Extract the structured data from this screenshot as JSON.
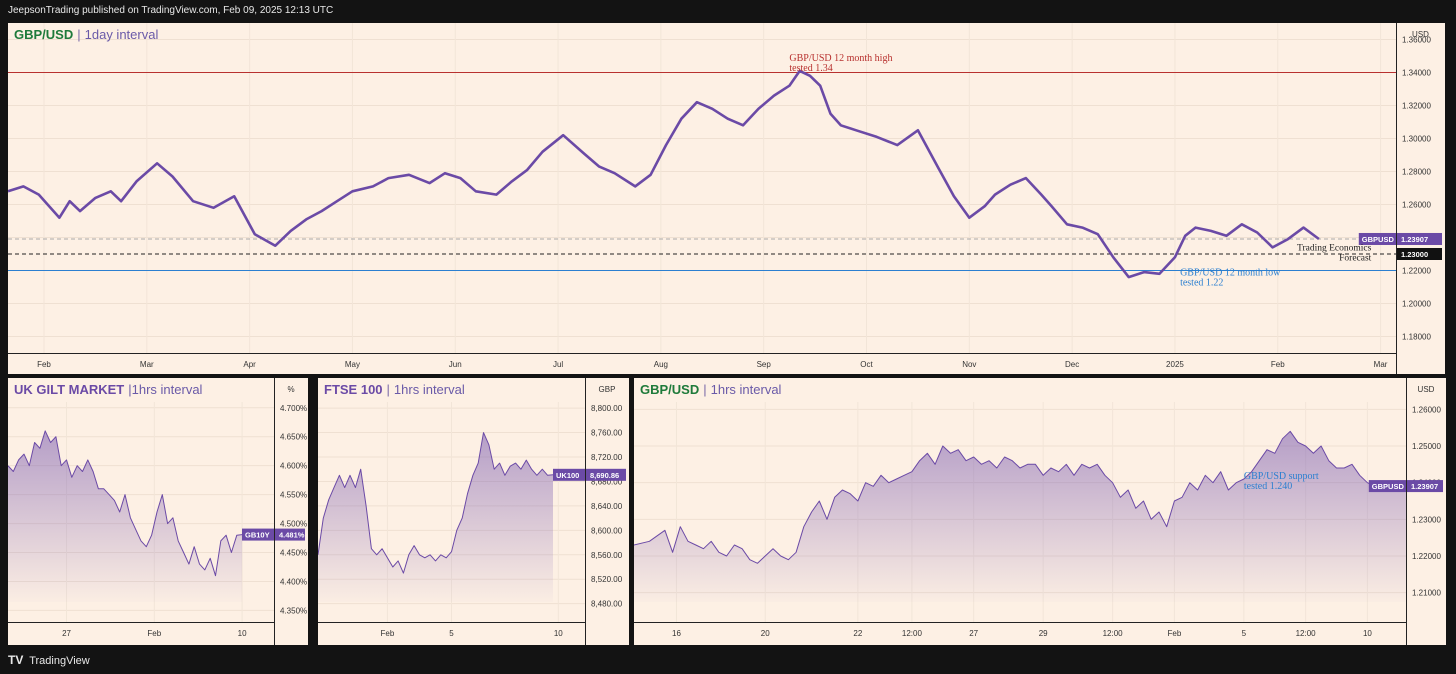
{
  "header": {
    "published_text": "JeepsonTrading published on TradingView.com, Feb 09, 2025 12:13 UTC"
  },
  "footer": {
    "brand": "TradingView",
    "logo_glyph": "TV"
  },
  "colors": {
    "line": "#6b4aa6",
    "fill": "#7a5bb0",
    "panel_bg": "#fdf0e4",
    "tag": "#6b4aa6",
    "red": "#b8312f",
    "blue": "#2b7fd0"
  },
  "chart_data": [
    {
      "type": "line",
      "id": "main",
      "title_symbol": "GBP/USD",
      "title_symbol_color": "#1e7a3a",
      "title_interval": "1day interval",
      "unit_label": "USD",
      "ylim": [
        1.17,
        1.37
      ],
      "y_ticks": [
        1.18,
        1.2,
        1.22,
        1.24,
        1.26,
        1.28,
        1.3,
        1.32,
        1.34,
        1.36
      ],
      "y_tick_labels": [
        "1.18000",
        "1.20000",
        "1.22000",
        "1.24000",
        "1.26000",
        "1.28000",
        "1.30000",
        "1.32000",
        "1.34000",
        "1.36000"
      ],
      "xlim": [
        0,
        13.5
      ],
      "x_ticks": [
        0.35,
        1.35,
        2.35,
        3.35,
        4.35,
        5.35,
        6.35,
        7.35,
        8.35,
        9.35,
        10.35,
        11.35,
        12.35,
        13.35
      ],
      "x_tick_labels": [
        "Feb",
        "Mar",
        "Apr",
        "May",
        "Jun",
        "Jul",
        "Aug",
        "Sep",
        "Oct",
        "Nov",
        "Dec",
        "2025",
        "Feb",
        "Mar"
      ],
      "x": [
        0,
        0.15,
        0.3,
        0.5,
        0.6,
        0.7,
        0.85,
        1.0,
        1.1,
        1.25,
        1.45,
        1.6,
        1.8,
        2.0,
        2.2,
        2.4,
        2.6,
        2.75,
        2.9,
        3.05,
        3.2,
        3.35,
        3.55,
        3.7,
        3.9,
        4.1,
        4.25,
        4.4,
        4.55,
        4.75,
        4.9,
        5.05,
        5.2,
        5.4,
        5.6,
        5.75,
        5.9,
        6.1,
        6.25,
        6.4,
        6.55,
        6.7,
        6.85,
        7.0,
        7.15,
        7.3,
        7.45,
        7.6,
        7.7,
        7.8,
        7.9,
        8.0,
        8.1,
        8.25,
        8.45,
        8.65,
        8.85,
        9.05,
        9.2,
        9.35,
        9.5,
        9.6,
        9.75,
        9.9,
        10.05,
        10.15,
        10.3,
        10.45,
        10.6,
        10.75,
        10.9,
        11.05,
        11.2,
        11.35,
        11.45,
        11.55,
        11.7,
        11.85,
        12.0,
        12.15,
        12.3,
        12.45,
        12.6,
        12.75
      ],
      "y": [
        1.268,
        1.271,
        1.266,
        1.252,
        1.262,
        1.256,
        1.264,
        1.268,
        1.262,
        1.274,
        1.285,
        1.277,
        1.262,
        1.258,
        1.265,
        1.242,
        1.235,
        1.244,
        1.251,
        1.256,
        1.262,
        1.268,
        1.271,
        1.276,
        1.278,
        1.273,
        1.279,
        1.276,
        1.268,
        1.266,
        1.274,
        1.281,
        1.292,
        1.302,
        1.291,
        1.283,
        1.279,
        1.271,
        1.278,
        1.296,
        1.312,
        1.322,
        1.318,
        1.312,
        1.308,
        1.318,
        1.326,
        1.332,
        1.341,
        1.338,
        1.332,
        1.315,
        1.308,
        1.305,
        1.301,
        1.296,
        1.305,
        1.282,
        1.265,
        1.252,
        1.259,
        1.266,
        1.272,
        1.276,
        1.266,
        1.259,
        1.248,
        1.246,
        1.242,
        1.228,
        1.216,
        1.219,
        1.218,
        1.228,
        1.241,
        1.246,
        1.244,
        1.241,
        1.248,
        1.243,
        1.234,
        1.239,
        1.246,
        1.2391
      ],
      "hlines": [
        {
          "name": "twelve-month-high-line",
          "value": 1.34,
          "color": "#b8312f",
          "style": "solid"
        },
        {
          "name": "twelve-month-low-line",
          "value": 1.22,
          "color": "#2b7fd0",
          "style": "solid"
        },
        {
          "name": "forecast-line",
          "value": 1.23,
          "color": "#222222",
          "style": "dashed"
        },
        {
          "name": "previous-close-line",
          "value": 1.2391,
          "color": "#aaaaaa",
          "style": "dashed"
        }
      ],
      "price_tags": [
        {
          "value": 1.2391,
          "label": "GBPUSD",
          "price": "1.23907",
          "color": "#6b4aa6"
        },
        {
          "value": 1.23,
          "label": "",
          "price": "1.23000",
          "color": "#111111"
        }
      ],
      "annotations": [
        {
          "name": "twelve-month-high-annotation",
          "lines": [
            "GBP/USD 12 month high",
            "tested 1.34"
          ],
          "x": 7.6,
          "y": 1.347,
          "class": "ann-red"
        },
        {
          "name": "twelve-month-low-annotation",
          "lines": [
            "GBP/USD 12 month low",
            "tested 1.22"
          ],
          "x": 11.4,
          "y": 1.217,
          "class": "ann-blue"
        },
        {
          "name": "forecast-annotation",
          "lines": [
            "Trading Economics",
            "Forecast"
          ],
          "x": 13.26,
          "y": 1.232,
          "class": "ann-black",
          "anchor": "end"
        }
      ]
    },
    {
      "type": "area",
      "id": "gilt",
      "title_symbol": "UK GILT MARKET",
      "title_symbol_color": "#6b4aa6",
      "title_interval": "|1hrs interval",
      "unit_label": "%",
      "ylim": [
        4.33,
        4.71
      ],
      "y_ticks": [
        4.35,
        4.4,
        4.45,
        4.5,
        4.55,
        4.6,
        4.65,
        4.7
      ],
      "y_tick_labels": [
        "4.350%",
        "4.400%",
        "4.450%",
        "4.500%",
        "4.550%",
        "4.600%",
        "4.650%",
        "4.700%"
      ],
      "xlim": [
        0,
        100
      ],
      "x_ticks": [
        22,
        55,
        88
      ],
      "x_tick_labels": [
        "27",
        "Feb",
        "10"
      ],
      "x": [
        0,
        2,
        4,
        6,
        8,
        10,
        12,
        14,
        16,
        18,
        20,
        22,
        24,
        26,
        28,
        30,
        32,
        34,
        36,
        38,
        40,
        42,
        44,
        46,
        48,
        50,
        52,
        54,
        56,
        58,
        60,
        62,
        64,
        66,
        68,
        70,
        72,
        74,
        76,
        78,
        80,
        82,
        84,
        86,
        88
      ],
      "y": [
        4.6,
        4.59,
        4.61,
        4.62,
        4.6,
        4.64,
        4.63,
        4.66,
        4.64,
        4.65,
        4.6,
        4.61,
        4.58,
        4.6,
        4.59,
        4.61,
        4.59,
        4.56,
        4.56,
        4.55,
        4.54,
        4.52,
        4.55,
        4.51,
        4.49,
        4.47,
        4.46,
        4.48,
        4.52,
        4.55,
        4.5,
        4.51,
        4.47,
        4.45,
        4.43,
        4.46,
        4.43,
        4.42,
        4.44,
        4.41,
        4.47,
        4.48,
        4.45,
        4.48,
        4.481
      ],
      "price_tags": [
        {
          "value": 4.481,
          "label": "GB10Y",
          "price": "4.481%",
          "color": "#6b4aa6"
        }
      ]
    },
    {
      "type": "area",
      "id": "ftse",
      "title_symbol": "FTSE 100",
      "title_symbol_color": "#6b4aa6",
      "title_interval": "1hrs interval",
      "unit_label": "GBP",
      "ylim": [
        8450,
        8810
      ],
      "y_ticks": [
        8480,
        8520,
        8560,
        8600,
        8640,
        8680,
        8720,
        8760,
        8800
      ],
      "y_tick_labels": [
        "8,480.00",
        "8,520.00",
        "8,560.00",
        "8,600.00",
        "8,640.00",
        "8,680.00",
        "8,720.00",
        "8,760.00",
        "8,800.00"
      ],
      "xlim": [
        0,
        100
      ],
      "x_ticks": [
        26,
        50,
        90
      ],
      "x_tick_labels": [
        "Feb",
        "5",
        "10"
      ],
      "x": [
        0,
        2,
        4,
        6,
        8,
        10,
        12,
        14,
        16,
        18,
        20,
        22,
        24,
        26,
        28,
        30,
        32,
        34,
        36,
        38,
        40,
        42,
        44,
        46,
        48,
        50,
        52,
        54,
        56,
        58,
        60,
        62,
        64,
        66,
        68,
        70,
        72,
        74,
        76,
        78,
        80,
        82,
        84,
        86,
        88
      ],
      "y": [
        8560,
        8620,
        8650,
        8670,
        8690,
        8670,
        8690,
        8670,
        8700,
        8640,
        8570,
        8560,
        8570,
        8555,
        8540,
        8550,
        8530,
        8560,
        8575,
        8560,
        8555,
        8560,
        8550,
        8560,
        8555,
        8565,
        8600,
        8620,
        8660,
        8690,
        8710,
        8760,
        8740,
        8700,
        8710,
        8690,
        8705,
        8710,
        8700,
        8715,
        8700,
        8690,
        8700,
        8690,
        8690.86
      ],
      "price_tags": [
        {
          "value": 8690.86,
          "label": "UK100",
          "price": "8,690.86",
          "color": "#6b4aa6"
        }
      ]
    },
    {
      "type": "area",
      "id": "gbp1h",
      "title_symbol": "GBP/USD",
      "title_symbol_color": "#1e7a3a",
      "title_interval": "1hrs interval",
      "unit_label": "USD",
      "ylim": [
        1.202,
        1.262
      ],
      "y_ticks": [
        1.21,
        1.22,
        1.23,
        1.24,
        1.25,
        1.26
      ],
      "y_tick_labels": [
        "1.21000",
        "1.22000",
        "1.23000",
        "1.24000",
        "1.25000",
        "1.26000"
      ],
      "xlim": [
        0,
        100
      ],
      "x_ticks": [
        5.5,
        17,
        29,
        36,
        44,
        53,
        62,
        70,
        79,
        87,
        95,
        103
      ],
      "x_tick_labels": [
        "16",
        "20",
        "22",
        "12:00",
        "27",
        "29",
        "12:00",
        "Feb",
        "5",
        "12:00",
        "10",
        ""
      ],
      "x": [
        0,
        2,
        4,
        5,
        6,
        7,
        8,
        9,
        10,
        11,
        12,
        13,
        14,
        15,
        16,
        17,
        18,
        19,
        20,
        21,
        22,
        23,
        24,
        25,
        26,
        27,
        28,
        29,
        30,
        31,
        32,
        33,
        34,
        35,
        36,
        37,
        38,
        39,
        40,
        41,
        42,
        43,
        44,
        45,
        46,
        47,
        48,
        49,
        50,
        51,
        52,
        53,
        54,
        55,
        56,
        57,
        58,
        59,
        60,
        61,
        62,
        63,
        64,
        65,
        66,
        67,
        68,
        69,
        70,
        71,
        72,
        73,
        74,
        75,
        76,
        77,
        78,
        79,
        80,
        81,
        82,
        83,
        84,
        85,
        86,
        87,
        88,
        89,
        90,
        91,
        92,
        93,
        94,
        95,
        96,
        97,
        98,
        99,
        100
      ],
      "y": [
        1.223,
        1.224,
        1.227,
        1.221,
        1.228,
        1.224,
        1.223,
        1.222,
        1.224,
        1.221,
        1.22,
        1.223,
        1.222,
        1.219,
        1.218,
        1.22,
        1.222,
        1.22,
        1.219,
        1.221,
        1.228,
        1.232,
        1.235,
        1.23,
        1.236,
        1.238,
        1.237,
        1.235,
        1.24,
        1.239,
        1.242,
        1.24,
        1.241,
        1.242,
        1.243,
        1.246,
        1.248,
        1.245,
        1.25,
        1.248,
        1.249,
        1.246,
        1.247,
        1.245,
        1.246,
        1.244,
        1.247,
        1.246,
        1.244,
        1.245,
        1.245,
        1.242,
        1.244,
        1.243,
        1.245,
        1.242,
        1.245,
        1.244,
        1.245,
        1.242,
        1.24,
        1.236,
        1.238,
        1.233,
        1.235,
        1.23,
        1.232,
        1.228,
        1.235,
        1.236,
        1.24,
        1.238,
        1.242,
        1.24,
        1.243,
        1.238,
        1.24,
        1.241,
        1.243,
        1.246,
        1.249,
        1.248,
        1.252,
        1.254,
        1.251,
        1.25,
        1.248,
        1.25,
        1.246,
        1.244,
        1.244,
        1.245,
        1.242,
        1.24,
        1.239,
        1.239,
        1.239,
        1.2391,
        1.2391
      ],
      "price_tags": [
        {
          "value": 1.23907,
          "label": "GBPUSD",
          "price": "1.23907",
          "color": "#6b4aa6"
        }
      ],
      "annotations": [
        {
          "name": "support-annotation",
          "lines": [
            "GBP/USD support",
            "tested 1.240"
          ],
          "x": 79,
          "y": 1.241,
          "class": "ann-blue"
        }
      ]
    }
  ]
}
